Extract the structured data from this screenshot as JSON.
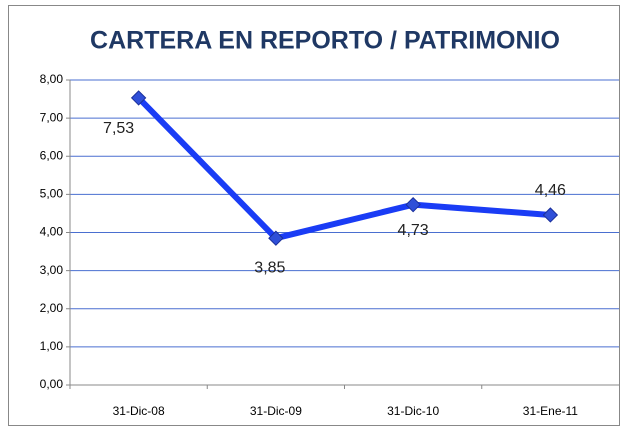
{
  "chart_data": {
    "type": "line",
    "title": "CARTERA EN REPORTO / PATRIMONIO",
    "categories": [
      "31-Dic-08",
      "31-Dic-09",
      "31-Dic-10",
      "31-Ene-11"
    ],
    "series": [
      {
        "name": "Cartera en reporto / Patrimonio",
        "color": "#1a3cf5",
        "values": [
          7.53,
          3.85,
          4.73,
          4.46
        ],
        "value_labels": [
          "7,53",
          "3,85",
          "4,73",
          "4,46"
        ]
      }
    ],
    "ylim": [
      0,
      8
    ],
    "yticks": [
      {
        "value": 0,
        "label": "0,00"
      },
      {
        "value": 1,
        "label": "1,00"
      },
      {
        "value": 2,
        "label": "2,00"
      },
      {
        "value": 3,
        "label": "3,00"
      },
      {
        "value": 4,
        "label": "4,00"
      },
      {
        "value": 5,
        "label": "5,00"
      },
      {
        "value": 6,
        "label": "6,00"
      },
      {
        "value": 7,
        "label": "7,00"
      },
      {
        "value": 8,
        "label": "8,00"
      }
    ],
    "grid": true
  }
}
